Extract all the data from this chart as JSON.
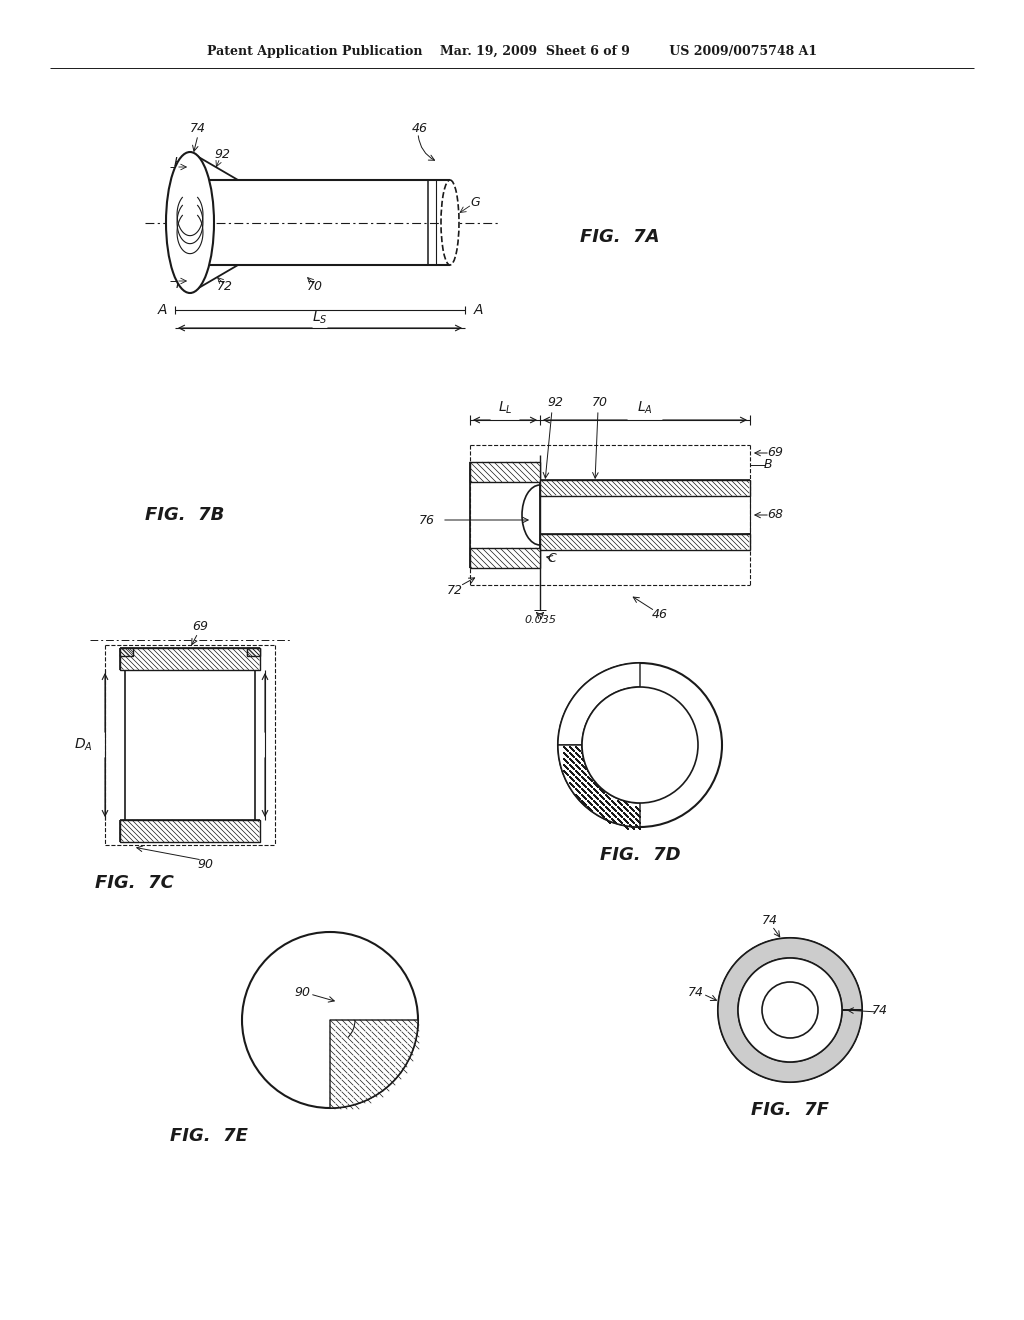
{
  "bg_color": "#ffffff",
  "lc": "#1a1a1a",
  "header": "Patent Application Publication    Mar. 19, 2009  Sheet 6 of 9         US 2009/0075748 A1",
  "fig7a": "FIG.  7A",
  "fig7b": "FIG.  7B",
  "fig7c": "FIG.  7C",
  "fig7d": "FIG.  7D",
  "fig7e": "FIG.  7E",
  "fig7f": "FIG.  7F"
}
